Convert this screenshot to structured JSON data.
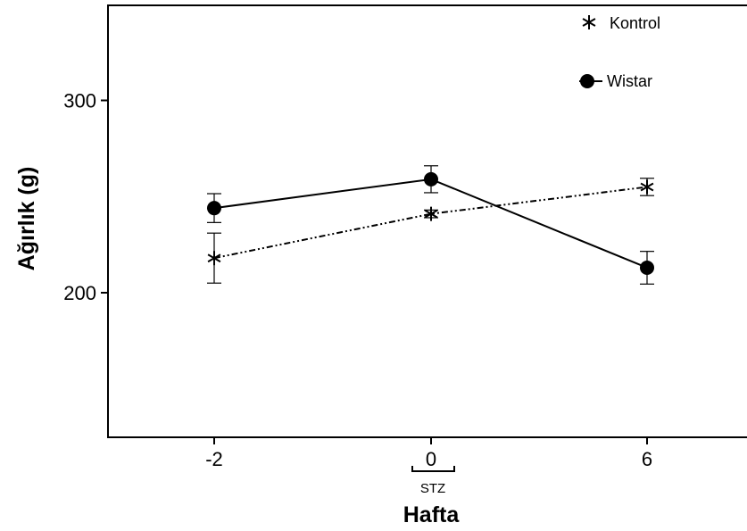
{
  "chart_data": {
    "type": "line",
    "xlabel": "Hafta",
    "ylabel": "Ağırlık (g)",
    "x": [
      -2,
      0,
      6
    ],
    "x_tick_labels": [
      "-2",
      "0",
      "6"
    ],
    "y_ticks": [
      200,
      300
    ],
    "ylim": [
      130,
      350
    ],
    "grid": false,
    "legend_position": "top-right",
    "annotation": "STZ",
    "series": [
      {
        "name": "Kontrol",
        "marker": "asterisk",
        "line_style": "dash-dot",
        "values": [
          218,
          241,
          255
        ],
        "errors": [
          13,
          2,
          4.5
        ]
      },
      {
        "name": "Wistar",
        "marker": "circle",
        "line_style": "solid",
        "values": [
          244,
          259,
          213
        ],
        "errors": [
          7.5,
          7,
          8.5
        ]
      }
    ]
  }
}
